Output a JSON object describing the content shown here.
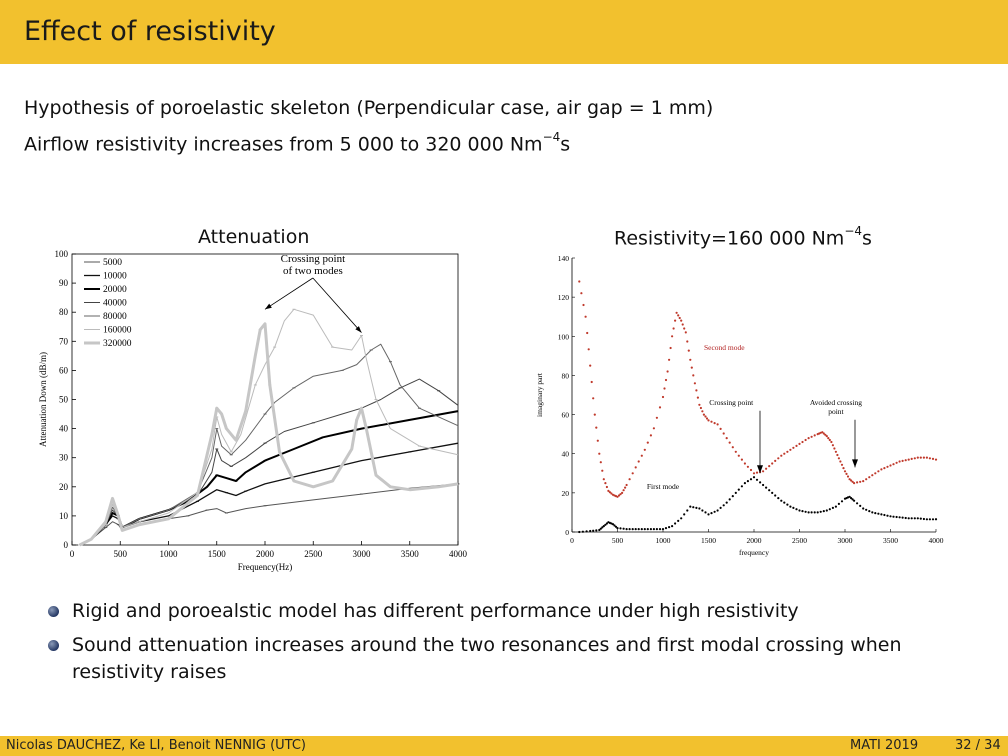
{
  "slide": {
    "title": "Effect of resistivity",
    "intro_line1": "Hypothesis of poroelastic skeleton (Perpendicular case, air gap = 1 mm)",
    "intro_line2_prefix": "Airflow resistivity increases from 5 000 to 320 000 Nm",
    "intro_line2_exp": "−4",
    "intro_line2_suffix": "s"
  },
  "charts": {
    "left_title": "Attenuation",
    "right_title_prefix": "Resistivity=160 000 Nm",
    "right_title_exp": "−4",
    "right_title_suffix": "s"
  },
  "chart_data": [
    {
      "type": "line",
      "title": "Attenuation",
      "xlabel": "Frequency(Hz)",
      "ylabel": "Attenuation Down (dB/m)",
      "xlim": [
        0,
        4000
      ],
      "ylim": [
        0,
        100
      ],
      "xticks": [
        0,
        500,
        1000,
        1500,
        2000,
        2500,
        3000,
        3500,
        4000
      ],
      "yticks": [
        0,
        10,
        20,
        30,
        40,
        50,
        60,
        70,
        80,
        90,
        100
      ],
      "legend_position": "top-left",
      "annotation": {
        "text_line1": "Crossing point",
        "text_line2": "of two modes",
        "x": 2600,
        "y": 95,
        "targets": [
          [
            2000,
            81
          ],
          [
            3000,
            73
          ]
        ]
      },
      "series": [
        {
          "name": "5000",
          "color": "#555555",
          "width": 1,
          "x": [
            80,
            200,
            350,
            420,
            480,
            520,
            700,
            1000,
            1200,
            1300,
            1400,
            1500,
            1600,
            1800,
            2000,
            2500,
            3000,
            3500,
            4000
          ],
          "y": [
            0,
            2,
            6,
            8,
            7,
            5,
            7,
            9,
            10,
            11,
            12,
            12.5,
            11,
            12.5,
            13.5,
            15.5,
            17.5,
            19.5,
            21
          ]
        },
        {
          "name": "10000",
          "color": "#111111",
          "width": 1.3,
          "x": [
            80,
            200,
            350,
            420,
            480,
            520,
            700,
            1000,
            1300,
            1500,
            1600,
            1700,
            1800,
            2000,
            2500,
            3000,
            3500,
            4000
          ],
          "y": [
            0,
            2,
            7,
            10,
            9,
            6,
            8,
            10,
            15,
            19,
            18,
            17,
            18.5,
            21,
            25,
            29,
            32,
            35
          ]
        },
        {
          "name": "20000",
          "color": "#000000",
          "width": 2,
          "x": [
            80,
            200,
            350,
            420,
            480,
            520,
            700,
            1000,
            1200,
            1400,
            1500,
            1600,
            1700,
            1800,
            2000,
            2300,
            2600,
            3000,
            3500,
            4000
          ],
          "y": [
            0,
            2,
            7,
            11,
            10,
            6,
            9,
            12,
            15,
            20,
            24,
            23,
            22,
            25,
            29,
            33,
            37,
            40,
            43,
            46
          ]
        },
        {
          "name": "40000",
          "color": "#444444",
          "width": 1,
          "x": [
            80,
            200,
            350,
            420,
            480,
            520,
            700,
            1000,
            1300,
            1450,
            1500,
            1550,
            1650,
            1800,
            2000,
            2200,
            2500,
            2800,
            3000,
            3200,
            3400,
            3600,
            3800,
            4000
          ],
          "y": [
            0,
            2,
            7,
            12,
            10,
            6,
            9,
            12,
            17,
            25,
            33,
            29,
            27,
            30,
            35,
            39,
            42,
            45,
            47,
            50,
            54,
            57,
            53,
            48
          ]
        },
        {
          "name": "80000",
          "color": "#666666",
          "width": 1,
          "x": [
            80,
            200,
            350,
            420,
            480,
            520,
            700,
            1000,
            1300,
            1450,
            1500,
            1550,
            1650,
            1800,
            2000,
            2100,
            2300,
            2500,
            2800,
            2950,
            3100,
            3200,
            3300,
            3400,
            3600,
            4000
          ],
          "y": [
            0,
            2,
            7,
            13,
            10,
            6,
            9,
            12,
            18,
            30,
            40,
            34,
            31,
            36,
            45,
            49,
            54,
            58,
            60,
            62,
            67,
            69,
            63,
            55,
            47,
            41
          ]
        },
        {
          "name": "160000",
          "color": "#bbbbbb",
          "width": 1,
          "x": [
            80,
            200,
            350,
            420,
            480,
            520,
            700,
            1000,
            1300,
            1450,
            1500,
            1550,
            1650,
            1750,
            1900,
            2000,
            2100,
            2200,
            2300,
            2500,
            2700,
            2900,
            3000,
            3050,
            3150,
            3300,
            3600,
            4000
          ],
          "y": [
            0,
            2,
            7,
            14,
            10,
            6,
            8,
            11,
            18,
            33,
            44,
            38,
            32,
            38,
            55,
            62,
            68,
            77,
            81,
            79,
            68,
            67,
            72,
            64,
            50,
            40,
            34,
            31
          ]
        },
        {
          "name": "320000",
          "color": "#c6c6c6",
          "width": 3,
          "x": [
            80,
            200,
            350,
            420,
            480,
            520,
            700,
            1000,
            1300,
            1450,
            1500,
            1550,
            1600,
            1700,
            1800,
            1900,
            1950,
            2000,
            2050,
            2150,
            2300,
            2500,
            2700,
            2900,
            2950,
            3000,
            3050,
            3150,
            3300,
            3500,
            3800,
            4000
          ],
          "y": [
            0,
            2,
            8,
            16,
            10,
            5,
            7,
            9,
            17,
            38,
            47,
            45,
            40,
            36,
            46,
            65,
            74,
            76,
            55,
            32,
            22,
            20,
            22,
            33,
            43,
            47,
            40,
            24,
            20,
            19,
            20,
            21
          ]
        }
      ]
    },
    {
      "type": "scatter",
      "title": "Resistivity=160 000 Nm−4s",
      "xlabel": "frequency",
      "ylabel": "imaginary part",
      "xlim": [
        0,
        4000
      ],
      "ylim": [
        0,
        140
      ],
      "xticks": [
        0,
        500,
        1000,
        1500,
        2000,
        2500,
        3000,
        3500,
        4000
      ],
      "yticks": [
        0,
        20,
        40,
        60,
        80,
        100,
        120,
        140
      ],
      "annotations": [
        {
          "text": "Second mode",
          "x": 1450,
          "y": 93,
          "color": "#b22222"
        },
        {
          "text": "First mode",
          "x": 1000,
          "y": 22,
          "color": "#000000"
        },
        {
          "text": "Crossing point",
          "x": 1750,
          "y": 65,
          "arrow_to": [
            2000,
            30
          ]
        },
        {
          "text_line1": "Avoided crossing",
          "text_line2": "point",
          "x": 2900,
          "y": 65,
          "arrow_to": [
            3000,
            33
          ]
        }
      ],
      "series": [
        {
          "name": "Second mode",
          "color": "#c0392b",
          "x": [
            80,
            150,
            200,
            250,
            300,
            350,
            400,
            450,
            500,
            550,
            600,
            700,
            800,
            900,
            1000,
            1050,
            1100,
            1150,
            1200,
            1250,
            1300,
            1350,
            1400,
            1450,
            1500,
            1600,
            1700,
            1800,
            1900,
            2000,
            2100,
            2200,
            2300,
            2400,
            2500,
            2600,
            2700,
            2750,
            2800,
            2850,
            2900,
            2950,
            3000,
            3050,
            3100,
            3200,
            3300,
            3400,
            3500,
            3600,
            3700,
            3800,
            3900,
            4000
          ],
          "y": [
            128,
            110,
            85,
            60,
            40,
            27,
            21,
            19,
            18,
            20,
            24,
            33,
            42,
            53,
            69,
            82,
            100,
            112,
            108,
            102,
            88,
            76,
            65,
            60,
            57,
            55,
            48,
            41,
            35,
            30,
            31,
            35,
            39,
            42,
            45,
            48,
            50,
            51,
            49,
            46,
            41,
            36,
            31,
            27,
            25,
            26,
            29,
            32,
            34,
            36,
            37,
            38,
            38,
            37
          ]
        },
        {
          "name": "First mode",
          "color": "#000000",
          "x": [
            80,
            200,
            300,
            350,
            400,
            450,
            500,
            600,
            700,
            800,
            900,
            1000,
            1100,
            1200,
            1300,
            1400,
            1500,
            1600,
            1700,
            1800,
            1900,
            2000,
            2100,
            2200,
            2300,
            2400,
            2500,
            2600,
            2700,
            2800,
            2900,
            3000,
            3050,
            3100,
            3200,
            3300,
            3400,
            3500,
            3600,
            3700,
            3800,
            3900,
            4000
          ],
          "y": [
            0,
            0.5,
            1,
            3,
            5,
            4,
            2,
            1.5,
            1.5,
            1.5,
            1.5,
            1.5,
            3,
            7,
            13,
            12,
            9,
            11,
            15,
            20,
            25,
            28,
            24,
            20,
            16,
            13,
            11,
            10,
            10,
            11,
            13,
            17,
            18,
            16,
            12,
            10,
            9,
            8,
            7.5,
            7,
            7,
            6.5,
            6.5
          ]
        }
      ]
    }
  ],
  "bullets": [
    "Rigid and poroealstic model has different performance under high resistivity",
    "Sound attenuation increases around the two resonances and first modal crossing when resistivity raises"
  ],
  "footer": {
    "authors": "Nicolas DAUCHEZ, Ke LI, Benoit NENNIG  (UTC)",
    "event": "MATI 2019",
    "page": "32 / 34"
  },
  "colors": {
    "header": "#f2c12e",
    "footer": "#f2c12e"
  }
}
